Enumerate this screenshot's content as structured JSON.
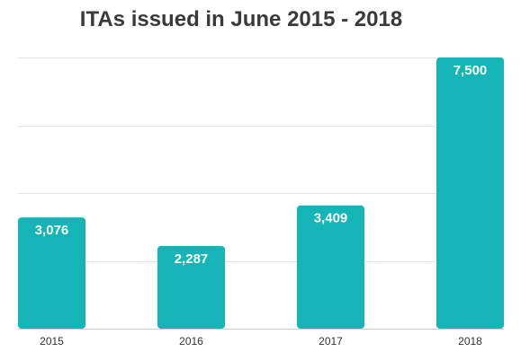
{
  "chart_data": {
    "type": "bar",
    "title": "ITAs issued in June 2015 - 2018",
    "categories": [
      "2015",
      "2016",
      "2017",
      "2018"
    ],
    "values": [
      3076,
      2287,
      3409,
      7500
    ],
    "value_labels": [
      "3,076",
      "2,287",
      "3,409",
      "7,500"
    ],
    "xlabel": "",
    "ylabel": "",
    "ylim": [
      0,
      7500
    ],
    "grid": true,
    "bar_color": "#15b5b7"
  }
}
